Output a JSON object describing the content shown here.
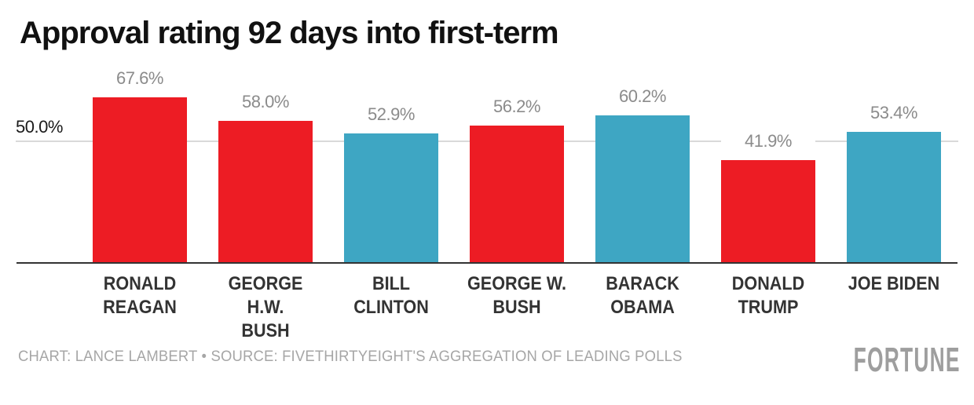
{
  "chart_data": {
    "type": "bar",
    "title": "Approval rating 92 days into first-term",
    "categories": [
      "RONALD REAGAN",
      "GEORGE H.W. BUSH",
      "BILL CLINTON",
      "GEORGE W. BUSH",
      "BARACK OBAMA",
      "DONALD TRUMP",
      "JOE BIDEN"
    ],
    "category_display": [
      "RONALD\nREAGAN",
      "GEORGE H.W.\nBUSH",
      "BILL\nCLINTON",
      "GEORGE W.\nBUSH",
      "BARACK\nOBAMA",
      "DONALD\nTRUMP",
      "JOE BIDEN"
    ],
    "values": [
      67.6,
      58.0,
      52.9,
      56.2,
      60.2,
      41.9,
      53.4
    ],
    "value_labels": [
      "67.6%",
      "58.0%",
      "52.9%",
      "56.2%",
      "60.2%",
      "41.9%",
      "53.4%"
    ],
    "bar_colors": [
      "#ed1c24",
      "#ed1c24",
      "#3ea6c3",
      "#ed1c24",
      "#3ea6c3",
      "#ed1c24",
      "#3ea6c3"
    ],
    "xlabel": "",
    "ylabel": "",
    "ylim": [
      0,
      70
    ],
    "grid": "single horizontal gridline at 50%",
    "gridline_value": 50.0,
    "gridline_label": "50.0%",
    "legend": "none",
    "colors": {
      "republican_red": "#ed1c24",
      "democrat_teal": "#3ea6c3",
      "gridline": "#d9d9d9",
      "axis_line": "#333333",
      "value_label_gray": "#8b8b8b",
      "category_label": "#333333",
      "credit_gray": "#a6a6a6",
      "logo_gray": "#9e9e9e"
    }
  },
  "footer": {
    "credit": "CHART: LANCE LAMBERT • SOURCE: FIVETHIRTYEIGHT'S AGGREGATION OF LEADING POLLS",
    "logo": "FORTUNE"
  }
}
